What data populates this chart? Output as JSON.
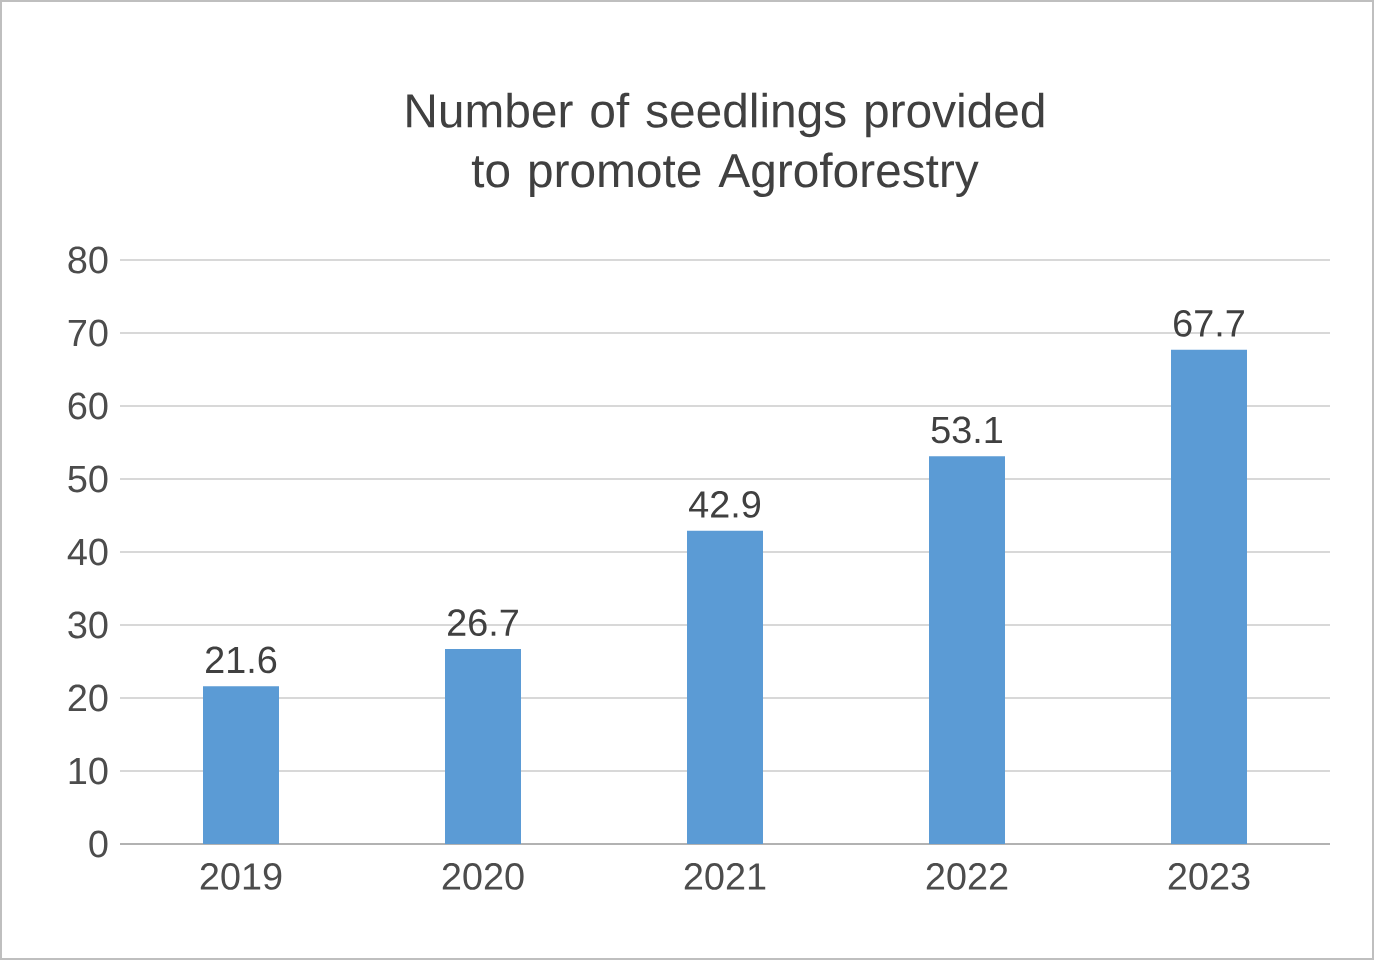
{
  "chart_data": {
    "type": "bar",
    "title": "Number of seedlings provided to promote Agroforestry",
    "categories": [
      "2019",
      "2020",
      "2021",
      "2022",
      "2023"
    ],
    "values": [
      21.6,
      26.7,
      42.9,
      53.1,
      67.7
    ],
    "color": "#5b9bd5",
    "ylim": [
      0,
      80
    ],
    "yticks": [
      0,
      10,
      20,
      30,
      40,
      50,
      60,
      70,
      80
    ],
    "grid": "y",
    "data_labels": true
  }
}
